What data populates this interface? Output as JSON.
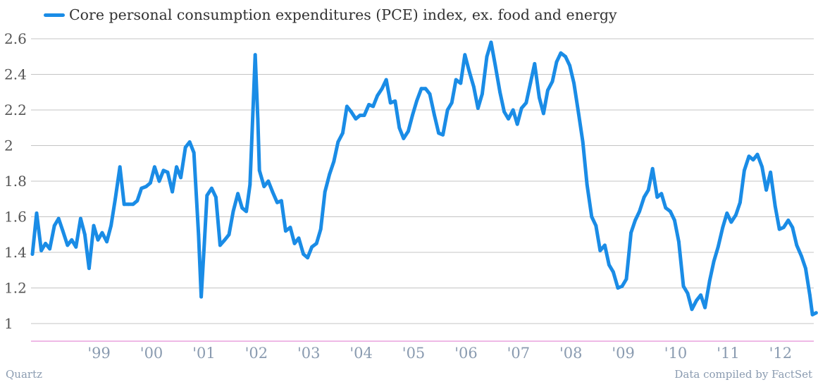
{
  "chart_data": {
    "type": "line",
    "title": "",
    "xlabel": "",
    "ylabel": "",
    "ylim": [
      0.9,
      2.6
    ],
    "yticks": [
      1,
      1.2,
      1.4,
      1.6,
      1.8,
      2,
      2.2,
      2.4,
      2.6
    ],
    "ytick_labels": [
      "1",
      "1.2",
      "1.4",
      "1.6",
      "1.8",
      "2",
      "2.2",
      "2.4",
      "2.6"
    ],
    "xlim": [
      1998.0,
      2012.95
    ],
    "xticks": [
      1999,
      2000,
      2001,
      2002,
      2003,
      2004,
      2005,
      2006,
      2007,
      2008,
      2009,
      2010,
      2011,
      2012
    ],
    "xtick_labels": [
      "'99",
      "'00",
      "'01",
      "'02",
      "'03",
      "'04",
      "'05",
      "'06",
      "'07",
      "'08",
      "'09",
      "'10",
      "'11",
      "'12"
    ],
    "grid": true,
    "legend_position": "top-left",
    "series": [
      {
        "name": "Core personal consumption expenditures (PCE) index, ex. food and energy",
        "color": "#1a8ce6",
        "points": [
          [
            1998.0,
            1.39
          ],
          [
            1998.08,
            1.62
          ],
          [
            1998.17,
            1.41
          ],
          [
            1998.25,
            1.45
          ],
          [
            1998.33,
            1.42
          ],
          [
            1998.42,
            1.55
          ],
          [
            1998.5,
            1.59
          ],
          [
            1998.58,
            1.52
          ],
          [
            1998.67,
            1.44
          ],
          [
            1998.75,
            1.47
          ],
          [
            1998.83,
            1.43
          ],
          [
            1998.92,
            1.59
          ],
          [
            1999.0,
            1.5
          ],
          [
            1999.08,
            1.31
          ],
          [
            1999.17,
            1.55
          ],
          [
            1999.25,
            1.47
          ],
          [
            1999.33,
            1.51
          ],
          [
            1999.42,
            1.46
          ],
          [
            1999.5,
            1.55
          ],
          [
            1999.58,
            1.7
          ],
          [
            1999.67,
            1.88
          ],
          [
            1999.75,
            1.67
          ],
          [
            1999.83,
            1.67
          ],
          [
            1999.92,
            1.67
          ],
          [
            2000.0,
            1.69
          ],
          [
            2000.08,
            1.76
          ],
          [
            2000.17,
            1.77
          ],
          [
            2000.25,
            1.79
          ],
          [
            2000.33,
            1.88
          ],
          [
            2000.42,
            1.8
          ],
          [
            2000.5,
            1.86
          ],
          [
            2000.58,
            1.85
          ],
          [
            2000.67,
            1.74
          ],
          [
            2000.75,
            1.88
          ],
          [
            2000.83,
            1.82
          ],
          [
            2000.92,
            1.99
          ],
          [
            2001.0,
            2.02
          ],
          [
            2001.08,
            1.96
          ],
          [
            2001.17,
            1.5
          ],
          [
            2001.22,
            1.15
          ],
          [
            2001.28,
            1.45
          ],
          [
            2001.33,
            1.72
          ],
          [
            2001.42,
            1.76
          ],
          [
            2001.5,
            1.71
          ],
          [
            2001.58,
            1.44
          ],
          [
            2001.67,
            1.47
          ],
          [
            2001.75,
            1.5
          ],
          [
            2001.83,
            1.63
          ],
          [
            2001.92,
            1.73
          ],
          [
            2002.0,
            1.65
          ],
          [
            2002.08,
            1.63
          ],
          [
            2002.15,
            1.78
          ],
          [
            2002.21,
            2.21
          ],
          [
            2002.25,
            2.51
          ],
          [
            2002.3,
            2.15
          ],
          [
            2002.33,
            1.86
          ],
          [
            2002.42,
            1.77
          ],
          [
            2002.5,
            1.8
          ],
          [
            2002.58,
            1.74
          ],
          [
            2002.67,
            1.68
          ],
          [
            2002.75,
            1.69
          ],
          [
            2002.83,
            1.52
          ],
          [
            2002.92,
            1.54
          ],
          [
            2003.0,
            1.45
          ],
          [
            2003.08,
            1.48
          ],
          [
            2003.17,
            1.39
          ],
          [
            2003.25,
            1.37
          ],
          [
            2003.33,
            1.43
          ],
          [
            2003.42,
            1.45
          ],
          [
            2003.5,
            1.53
          ],
          [
            2003.58,
            1.74
          ],
          [
            2003.67,
            1.84
          ],
          [
            2003.75,
            1.91
          ],
          [
            2003.83,
            2.02
          ],
          [
            2003.92,
            2.07
          ],
          [
            2004.0,
            2.22
          ],
          [
            2004.08,
            2.19
          ],
          [
            2004.17,
            2.15
          ],
          [
            2004.25,
            2.17
          ],
          [
            2004.33,
            2.17
          ],
          [
            2004.42,
            2.23
          ],
          [
            2004.5,
            2.22
          ],
          [
            2004.58,
            2.28
          ],
          [
            2004.67,
            2.32
          ],
          [
            2004.75,
            2.37
          ],
          [
            2004.83,
            2.24
          ],
          [
            2004.92,
            2.25
          ],
          [
            2005.0,
            2.1
          ],
          [
            2005.08,
            2.04
          ],
          [
            2005.17,
            2.08
          ],
          [
            2005.25,
            2.17
          ],
          [
            2005.33,
            2.25
          ],
          [
            2005.42,
            2.32
          ],
          [
            2005.5,
            2.32
          ],
          [
            2005.58,
            2.29
          ],
          [
            2005.67,
            2.17
          ],
          [
            2005.75,
            2.07
          ],
          [
            2005.83,
            2.06
          ],
          [
            2005.92,
            2.2
          ],
          [
            2006.0,
            2.24
          ],
          [
            2006.08,
            2.37
          ],
          [
            2006.17,
            2.35
          ],
          [
            2006.25,
            2.51
          ],
          [
            2006.33,
            2.42
          ],
          [
            2006.42,
            2.33
          ],
          [
            2006.5,
            2.21
          ],
          [
            2006.58,
            2.29
          ],
          [
            2006.67,
            2.5
          ],
          [
            2006.75,
            2.58
          ],
          [
            2006.83,
            2.45
          ],
          [
            2006.92,
            2.3
          ],
          [
            2007.0,
            2.19
          ],
          [
            2007.08,
            2.15
          ],
          [
            2007.17,
            2.2
          ],
          [
            2007.25,
            2.12
          ],
          [
            2007.33,
            2.21
          ],
          [
            2007.42,
            2.24
          ],
          [
            2007.5,
            2.35
          ],
          [
            2007.58,
            2.46
          ],
          [
            2007.67,
            2.27
          ],
          [
            2007.75,
            2.18
          ],
          [
            2007.83,
            2.31
          ],
          [
            2007.92,
            2.36
          ],
          [
            2008.0,
            2.47
          ],
          [
            2008.08,
            2.52
          ],
          [
            2008.17,
            2.5
          ],
          [
            2008.25,
            2.45
          ],
          [
            2008.33,
            2.35
          ],
          [
            2008.42,
            2.18
          ],
          [
            2008.5,
            2.02
          ],
          [
            2008.58,
            1.78
          ],
          [
            2008.67,
            1.6
          ],
          [
            2008.75,
            1.55
          ],
          [
            2008.83,
            1.41
          ],
          [
            2008.92,
            1.44
          ],
          [
            2009.0,
            1.33
          ],
          [
            2009.08,
            1.29
          ],
          [
            2009.17,
            1.2
          ],
          [
            2009.25,
            1.21
          ],
          [
            2009.33,
            1.25
          ],
          [
            2009.42,
            1.51
          ],
          [
            2009.5,
            1.58
          ],
          [
            2009.58,
            1.63
          ],
          [
            2009.67,
            1.71
          ],
          [
            2009.75,
            1.75
          ],
          [
            2009.83,
            1.87
          ],
          [
            2009.92,
            1.71
          ],
          [
            2010.0,
            1.73
          ],
          [
            2010.08,
            1.65
          ],
          [
            2010.17,
            1.63
          ],
          [
            2010.25,
            1.58
          ],
          [
            2010.33,
            1.46
          ],
          [
            2010.42,
            1.21
          ],
          [
            2010.5,
            1.17
          ],
          [
            2010.58,
            1.08
          ],
          [
            2010.67,
            1.13
          ],
          [
            2010.75,
            1.16
          ],
          [
            2010.83,
            1.09
          ],
          [
            2010.92,
            1.24
          ],
          [
            2011.0,
            1.35
          ],
          [
            2011.08,
            1.43
          ],
          [
            2011.17,
            1.54
          ],
          [
            2011.25,
            1.62
          ],
          [
            2011.33,
            1.57
          ],
          [
            2011.42,
            1.61
          ],
          [
            2011.5,
            1.68
          ],
          [
            2011.58,
            1.86
          ],
          [
            2011.67,
            1.94
          ],
          [
            2011.75,
            1.92
          ],
          [
            2011.83,
            1.95
          ],
          [
            2011.92,
            1.88
          ],
          [
            2012.0,
            1.75
          ],
          [
            2012.08,
            1.85
          ],
          [
            2012.17,
            1.66
          ],
          [
            2012.25,
            1.53
          ],
          [
            2012.33,
            1.54
          ],
          [
            2012.42,
            1.58
          ],
          [
            2012.5,
            1.54
          ],
          [
            2012.58,
            1.44
          ],
          [
            2012.67,
            1.38
          ],
          [
            2012.75,
            1.31
          ],
          [
            2012.83,
            1.16
          ],
          [
            2012.88,
            1.05
          ],
          [
            2012.95,
            1.06
          ]
        ]
      }
    ]
  },
  "footer": {
    "source": "Quartz",
    "credit": "Data compiled by FactSet"
  },
  "colors": {
    "line": "#1a8ce6",
    "grid": "#c4c4c4",
    "baseline": "#e58fd8",
    "xtick_text": "#8a9bb0",
    "ytick_text": "#555555"
  }
}
